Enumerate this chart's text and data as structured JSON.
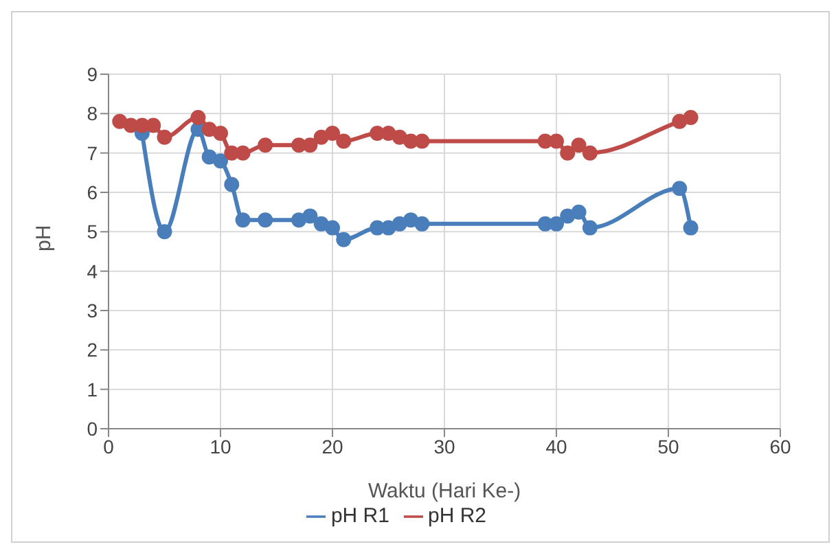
{
  "chart_data": {
    "type": "line",
    "xlabel": "Waktu (Hari Ke-)",
    "ylabel": "pH",
    "x": [
      1,
      2,
      3,
      4,
      5,
      8,
      9,
      10,
      11,
      12,
      14,
      17,
      18,
      19,
      20,
      21,
      24,
      25,
      26,
      27,
      28,
      39,
      40,
      41,
      42,
      43,
      51,
      52
    ],
    "series": [
      {
        "name": "pH R1",
        "color": "#4a7ebb",
        "values": [
          null,
          null,
          7.5,
          null,
          5.0,
          7.6,
          6.9,
          6.8,
          6.2,
          5.3,
          5.3,
          5.3,
          5.4,
          5.2,
          5.1,
          4.8,
          5.1,
          5.1,
          5.2,
          5.3,
          5.2,
          5.2,
          5.2,
          5.4,
          5.5,
          5.1,
          6.1,
          5.1
        ]
      },
      {
        "name": "pH R2",
        "color": "#be4b48",
        "values": [
          7.8,
          7.7,
          7.7,
          7.7,
          7.4,
          7.9,
          7.6,
          7.5,
          7.0,
          7.0,
          7.2,
          7.2,
          7.2,
          7.4,
          7.5,
          7.3,
          7.5,
          7.5,
          7.4,
          7.3,
          7.3,
          7.3,
          7.3,
          7.0,
          7.2,
          7.0,
          7.8,
          7.9
        ]
      }
    ],
    "xlim": [
      0,
      60
    ],
    "xticks": [
      0,
      10,
      20,
      30,
      40,
      50,
      60
    ],
    "ylim": [
      0,
      9
    ],
    "yticks": [
      0,
      1,
      2,
      3,
      4,
      5,
      6,
      7,
      8,
      9
    ],
    "grid": true,
    "legend": "bottom",
    "marker": "circle",
    "line_style": "solid"
  }
}
